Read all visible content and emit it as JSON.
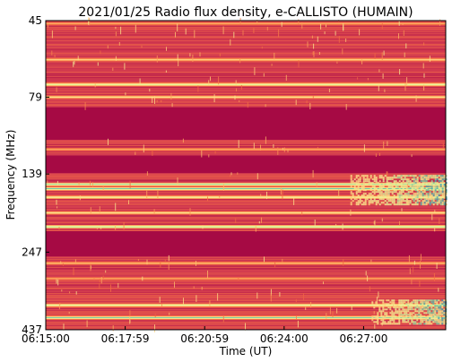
{
  "chart_data": {
    "type": "heatmap",
    "title": "2021/01/25  Radio flux density, e-CALLISTO (HUMAIN)",
    "xlabel": "Time (UT)",
    "ylabel": "Frequency (MHz)",
    "x_ticks": [
      "06:15:00",
      "06:17:59",
      "06:20:59",
      "06:24:00",
      "06:27:00"
    ],
    "x_tick_minutes": [
      0,
      3,
      6,
      9,
      12
    ],
    "x_range_minutes": [
      0,
      15.1
    ],
    "y_ticks": [
      45,
      79,
      139,
      247,
      437
    ],
    "y_range_mhz": [
      45,
      437
    ],
    "y_inverted": true,
    "colormap": [
      "#9e0142",
      "#d53e4f",
      "#f46d43",
      "#fdae61",
      "#fee08b",
      "#e6f598",
      "#66c2a5",
      "#3288bd"
    ],
    "background_color": "#9e0142",
    "features": [
      {
        "name": "bright-band",
        "freq_mhz": 46,
        "intensity": 0.45
      },
      {
        "name": "bright-band",
        "freq_mhz": 60,
        "intensity": 0.55
      },
      {
        "name": "bright-band",
        "freq_mhz": 72,
        "intensity": 0.75
      },
      {
        "name": "bright-band",
        "freq_mhz": 79,
        "intensity": 0.6
      },
      {
        "name": "bright-band",
        "freq_mhz": 116,
        "intensity": 0.45
      },
      {
        "name": "bright-band",
        "freq_mhz": 150,
        "intensity": 0.85
      },
      {
        "name": "bright-band",
        "freq_mhz": 155,
        "intensity": 0.9
      },
      {
        "name": "bright-band",
        "freq_mhz": 165,
        "intensity": 0.7
      },
      {
        "name": "bright-band",
        "freq_mhz": 185,
        "intensity": 0.6
      },
      {
        "name": "bright-band",
        "freq_mhz": 205,
        "intensity": 0.85
      },
      {
        "name": "bright-band",
        "freq_mhz": 268,
        "intensity": 0.5
      },
      {
        "name": "bright-band",
        "freq_mhz": 300,
        "intensity": 0.45
      },
      {
        "name": "bright-band",
        "freq_mhz": 365,
        "intensity": 0.75
      },
      {
        "name": "bright-band",
        "freq_mhz": 400,
        "intensity": 0.85
      }
    ],
    "quiet_regions_mhz": [
      [
        85,
        108
      ],
      [
        122,
        138
      ],
      [
        212,
        255
      ]
    ],
    "enhancement": {
      "start_minute": 11.5,
      "end_minute": 15.1,
      "freq_mhz": [
        140,
        175
      ],
      "peak": "#66c2a5"
    },
    "enhancement_2": {
      "start_minute": 12.3,
      "end_minute": 15.1,
      "freq_mhz": [
        350,
        420
      ],
      "peak": "#66c2a5"
    }
  }
}
